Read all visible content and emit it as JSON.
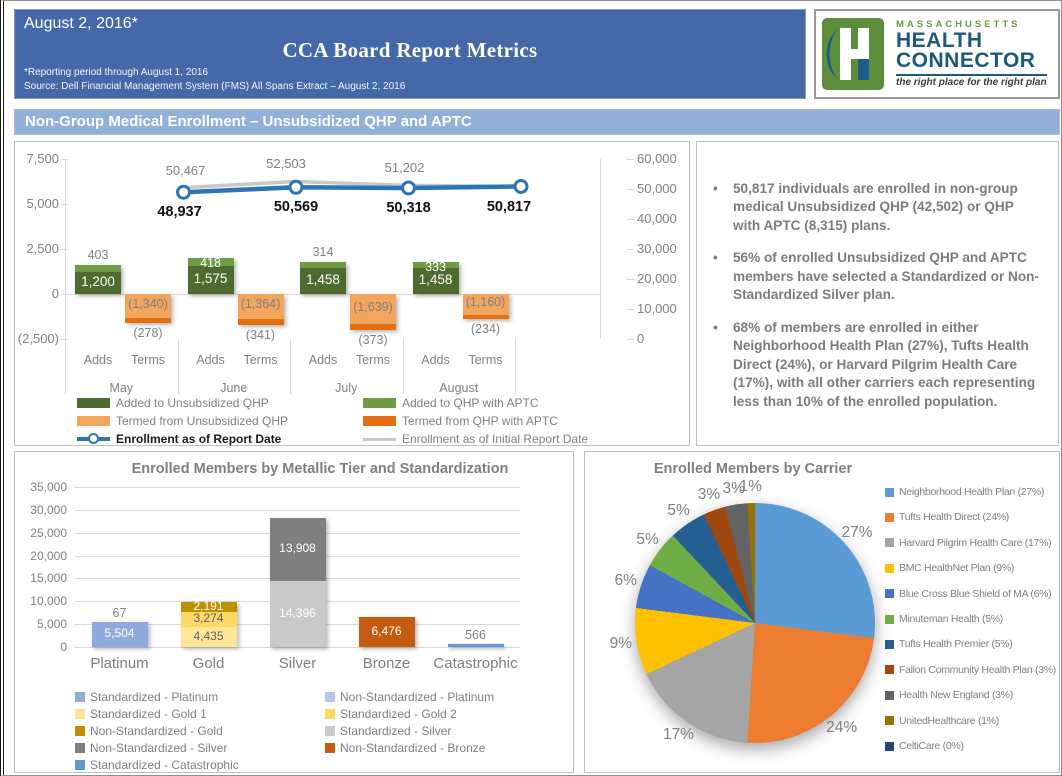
{
  "header": {
    "date": "August 2, 2016*",
    "title": "CCA Board Report Metrics",
    "footnote1": "*Reporting period through August 1, 2016",
    "footnote2": "Source: Dell Financial Management System (FMS) All Spans Extract – August 2, 2016"
  },
  "logo": {
    "region": "MASSACHUSETTS",
    "name1": "HEALTH",
    "name2": "CONNECTOR",
    "tagline": "the right place for the right plan"
  },
  "section_title": "Non-Group Medical Enrollment – Unsubsidized QHP and APTC",
  "bullets": [
    "50,817 individuals are enrolled in non-group medical Unsubsidized QHP (42,502) or QHP with APTC (8,315) plans.",
    "56% of enrolled Unsubsidized QHP and APTC members have selected a Standardized or Non-Standardized Silver plan.",
    "68% of members are enrolled in either Neighborhood Health Plan (27%), Tufts Health Direct (24%), or Harvard Pilgrim Health Care (17%), with all other carriers each representing less than 10% of the enrolled population."
  ],
  "chart_data": [
    {
      "type": "bar+line",
      "title": "",
      "months": [
        "May",
        "June",
        "July",
        "August"
      ],
      "sub_labels": [
        "Adds",
        "Terms"
      ],
      "left_axis_ticks": [
        "7,500",
        "5,000",
        "2,500",
        "0",
        "(2,500)"
      ],
      "left_axis_range": [
        -2500,
        7500
      ],
      "right_axis_ticks": [
        "60,000",
        "50,000",
        "40,000",
        "30,000",
        "20,000",
        "10,000",
        "0"
      ],
      "right_axis_range": [
        0,
        60000
      ],
      "series": [
        {
          "name": "Added to Unsubsidized QHP",
          "kind": "bar",
          "color": "#4d6b2f",
          "values": [
            1200,
            1575,
            1458,
            1458
          ],
          "labels": [
            "1,200",
            "1,575",
            "1,458",
            "1,458"
          ]
        },
        {
          "name": "Added to QHP with APTC",
          "kind": "bar",
          "color": "#6e9c44",
          "values": [
            403,
            418,
            314,
            333
          ],
          "labels": [
            "403",
            "418",
            "314",
            "333"
          ],
          "label_style": [
            "above",
            "inside",
            "above",
            "inside"
          ]
        },
        {
          "name": "Termed from Unsubsidized QHP",
          "kind": "bar",
          "color": "#f2a55c",
          "values": [
            -1340,
            -1364,
            -1639,
            -1160
          ],
          "labels": [
            "(1,340)",
            "(1,364)",
            "(1,639)",
            "(1,160)"
          ]
        },
        {
          "name": "Termed from QHP with APTC",
          "kind": "bar",
          "color": "#e36f0e",
          "values": [
            -278,
            -341,
            -373,
            -234
          ],
          "labels": [
            "(278)",
            "(341)",
            "(373)",
            "(234)"
          ]
        },
        {
          "name": "Enrollment as of Report Date",
          "kind": "line",
          "color": "#2e74b5",
          "values": [
            48937,
            50569,
            50318,
            50817
          ],
          "labels": [
            "48,937",
            "50,569",
            "50,318",
            "50,817"
          ]
        },
        {
          "name": "Enrollment as of Initial Report Date",
          "kind": "line",
          "color": "#c8c8c8",
          "values": [
            50467,
            52503,
            51202,
            50817
          ],
          "labels": [
            "50,467",
            "52,503",
            "51,202",
            ""
          ]
        }
      ]
    },
    {
      "type": "bar",
      "title": "Enrolled Members by Metallic Tier and Standardization",
      "categories": [
        "Platinum",
        "Gold",
        "Silver",
        "Bronze",
        "Catastrophic"
      ],
      "y_ticks": [
        "0",
        "5,000",
        "10,000",
        "15,000",
        "20,000",
        "25,000",
        "30,000",
        "35,000"
      ],
      "ylim": [
        0,
        35000
      ],
      "stacks": [
        [
          {
            "series": "Standardized - Platinum",
            "value": 5504,
            "label": "5,504",
            "color": "#8faadc",
            "label_color": "#ffffff"
          },
          {
            "series": "Non-Standardized - Platinum",
            "value": 67,
            "label": "67",
            "color": "#b4c7e7",
            "label_color": "#808080",
            "label_pos": "above"
          }
        ],
        [
          {
            "series": "Standardized - Gold 1",
            "value": 4435,
            "label": "4,435",
            "color": "#ffe699",
            "label_color": "#5f5f5f"
          },
          {
            "series": "Standardized - Gold 2",
            "value": 3274,
            "label": "3,274",
            "color": "#ffd966",
            "label_color": "#5f5f5f"
          },
          {
            "series": "Non-Standardized - Gold",
            "value": 2191,
            "label": "2,191",
            "color": "#bf8f00",
            "label_color": "#ffffff"
          }
        ],
        [
          {
            "series": "Standardized - Silver",
            "value": 14396,
            "label": "14,396",
            "color": "#c9c9c9",
            "label_color": "#ffffff"
          },
          {
            "series": "Non-Standardized - Silver",
            "value": 13908,
            "label": "13,908",
            "color": "#7f7f7f",
            "label_color": "#ffffff"
          }
        ],
        [
          {
            "series": "Non-Standardized - Bronze",
            "value": 6476,
            "label": "6,476",
            "color": "#c55a11",
            "label_color": "#ffffff"
          }
        ],
        [
          {
            "series": "Standardized - Catastrophic",
            "value": 566,
            "label": "566",
            "color": "#5b9bd5",
            "label_color": "#808080",
            "label_pos": "above"
          }
        ]
      ],
      "legend": [
        {
          "label": "Standardized - Platinum",
          "color": "#8faadc"
        },
        {
          "label": "Non-Standardized - Platinum",
          "color": "#b4c7e7"
        },
        {
          "label": "Standardized - Gold 1",
          "color": "#ffe699"
        },
        {
          "label": "Standardized - Gold 2",
          "color": "#ffd966"
        },
        {
          "label": "Non-Standardized - Gold",
          "color": "#bf8f00"
        },
        {
          "label": "Standardized - Silver",
          "color": "#c9c9c9"
        },
        {
          "label": "Non-Standardized - Silver",
          "color": "#7f7f7f"
        },
        {
          "label": "Non-Standardized - Bronze",
          "color": "#c55a11"
        },
        {
          "label": "Standardized - Catastrophic",
          "color": "#5b9bd5"
        }
      ]
    },
    {
      "type": "pie",
      "title": "Enrolled Members by Carrier",
      "legend_position": "right",
      "slices": [
        {
          "label": "Neighborhood Health Plan (27%)",
          "pct": 27,
          "color": "#5b9bd5",
          "pie_label": "27%"
        },
        {
          "label": "Tufts Health Direct (24%)",
          "pct": 24,
          "color": "#ed7d31",
          "pie_label": "24%"
        },
        {
          "label": "Harvard Pilgrim Health Care (17%)",
          "pct": 17,
          "color": "#a5a5a5",
          "pie_label": "17%"
        },
        {
          "label": "BMC HealthNet Plan (9%)",
          "pct": 9,
          "color": "#ffc000",
          "pie_label": "9%"
        },
        {
          "label": "Blue Cross Blue Shield of MA (6%)",
          "pct": 6,
          "color": "#4472c4",
          "pie_label": "6%"
        },
        {
          "label": "Minuteman Health (5%)",
          "pct": 5,
          "color": "#70ad47",
          "pie_label": "5%"
        },
        {
          "label": "Tufts Health Premier (5%)",
          "pct": 5,
          "color": "#255e91",
          "pie_label": "5%"
        },
        {
          "label": "Fallon Community Health Plan (3%)",
          "pct": 3,
          "color": "#9e480e",
          "pie_label": "3%"
        },
        {
          "label": "Health New England (3%)",
          "pct": 3,
          "color": "#636363",
          "pie_label": "3%"
        },
        {
          "label": "UnitedHealthcare (1%)",
          "pct": 1,
          "color": "#997300",
          "pie_label": "1%"
        },
        {
          "label": "CeltiCare (0%)",
          "pct": 0,
          "color": "#264478",
          "pie_label": ""
        }
      ]
    }
  ]
}
